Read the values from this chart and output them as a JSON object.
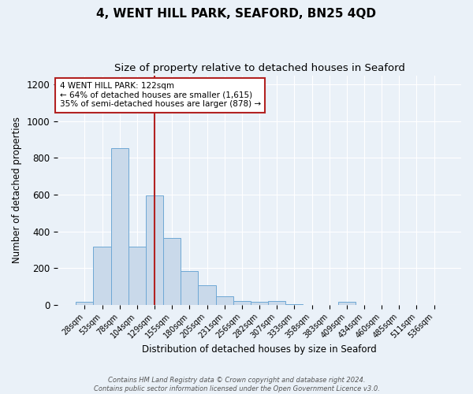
{
  "title": "4, WENT HILL PARK, SEAFORD, BN25 4QD",
  "subtitle": "Size of property relative to detached houses in Seaford",
  "xlabel": "Distribution of detached houses by size in Seaford",
  "ylabel": "Number of detached properties",
  "bar_labels": [
    "28sqm",
    "53sqm",
    "78sqm",
    "104sqm",
    "129sqm",
    "155sqm",
    "180sqm",
    "205sqm",
    "231sqm",
    "256sqm",
    "282sqm",
    "307sqm",
    "333sqm",
    "358sqm",
    "383sqm",
    "409sqm",
    "434sqm",
    "460sqm",
    "485sqm",
    "511sqm",
    "536sqm"
  ],
  "bar_values": [
    15,
    315,
    855,
    315,
    595,
    365,
    185,
    105,
    45,
    20,
    15,
    20,
    5,
    0,
    0,
    15,
    0,
    0,
    0,
    0,
    0
  ],
  "bar_color": "#c9d9ea",
  "bar_edgecolor": "#6ea8d5",
  "vline_x": 4.0,
  "vline_color": "#b22222",
  "annotation_text": "4 WENT HILL PARK: 122sqm\n← 64% of detached houses are smaller (1,615)\n35% of semi-detached houses are larger (878) →",
  "annotation_box_color": "white",
  "annotation_box_edgecolor": "#b22222",
  "ylim": [
    0,
    1250
  ],
  "yticks": [
    0,
    200,
    400,
    600,
    800,
    1000,
    1200
  ],
  "title_fontsize": 11,
  "subtitle_fontsize": 9.5,
  "footer_text": "Contains HM Land Registry data © Crown copyright and database right 2024.\nContains public sector information licensed under the Open Government Licence v3.0.",
  "bg_color": "#eaf1f8",
  "plot_bg_color": "#eaf1f8"
}
